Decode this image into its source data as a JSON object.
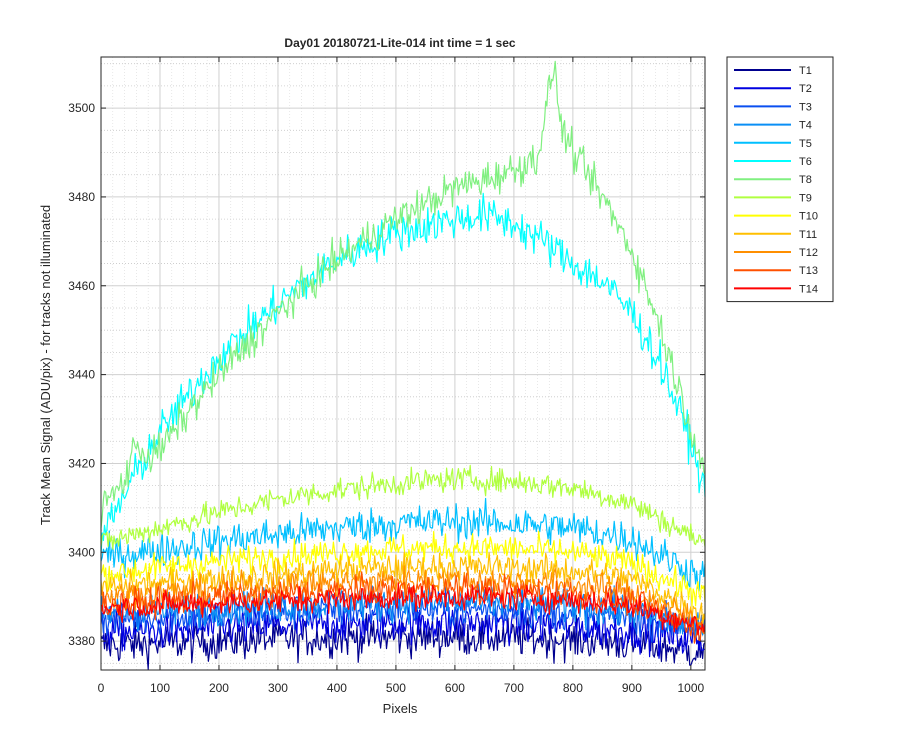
{
  "chart_data": {
    "type": "line",
    "title": "Day01 20180721-Lite-014 int time = 1 sec",
    "xlabel": "Pixels",
    "ylabel": "Track Mean Signal (ADU/pix) - for tracks not illuminated",
    "xlim": [
      0,
      1024
    ],
    "ylim": [
      3373.5,
      3511.5
    ],
    "xticks": [
      0,
      100,
      200,
      300,
      400,
      500,
      600,
      700,
      800,
      900,
      1000
    ],
    "yticks": [
      3380,
      3400,
      3420,
      3440,
      3460,
      3480,
      3500
    ],
    "xtick_labels": [
      "0",
      "100",
      "200",
      "300",
      "400",
      "500",
      "600",
      "700",
      "800",
      "900",
      "1000"
    ],
    "ytick_labels": [
      "3380",
      "3400",
      "3420",
      "3440",
      "3460",
      "3480",
      "3500"
    ],
    "grid": true,
    "minor_grid": true,
    "legend_position": "outside-top-right",
    "series": [
      {
        "name": "T1",
        "color": "#00008f",
        "noise": 2.2,
        "x": [
          0,
          100,
          200,
          300,
          400,
          500,
          600,
          700,
          800,
          900,
          1024
        ],
        "y": [
          3379,
          3379.5,
          3380,
          3380.5,
          3380.8,
          3381,
          3381,
          3380.8,
          3380.3,
          3379.5,
          3377.5
        ]
      },
      {
        "name": "T2",
        "color": "#0000e0",
        "noise": 2.2,
        "x": [
          0,
          100,
          200,
          300,
          400,
          500,
          600,
          700,
          800,
          900,
          1024
        ],
        "y": [
          3382,
          3382.5,
          3383,
          3383.5,
          3384,
          3384.2,
          3384.2,
          3384,
          3383.3,
          3382.5,
          3380
        ]
      },
      {
        "name": "T3",
        "color": "#0a4ff0",
        "noise": 2.0,
        "x": [
          0,
          100,
          200,
          300,
          400,
          500,
          600,
          700,
          800,
          900,
          1024
        ],
        "y": [
          3385,
          3385.5,
          3386,
          3386.5,
          3387,
          3387.2,
          3387.2,
          3387,
          3386.3,
          3385.5,
          3383
        ]
      },
      {
        "name": "T4",
        "color": "#0a8ff5",
        "noise": 2.0,
        "x": [
          0,
          100,
          200,
          300,
          400,
          500,
          600,
          700,
          800,
          900,
          1024
        ],
        "y": [
          3386,
          3387,
          3387.5,
          3388,
          3388.5,
          3388.7,
          3388.7,
          3388.5,
          3387.8,
          3386.5,
          3383
        ]
      },
      {
        "name": "T5",
        "color": "#00bfff",
        "noise": 2.0,
        "x": [
          0,
          100,
          200,
          300,
          400,
          500,
          600,
          700,
          800,
          900,
          1024
        ],
        "y": [
          3399,
          3400.5,
          3402.5,
          3404,
          3405.5,
          3406.5,
          3407,
          3406.5,
          3405.5,
          3403,
          3394
        ]
      },
      {
        "name": "T6",
        "color": "#00ffff",
        "noise": 2.2,
        "x": [
          0,
          20,
          60,
          100,
          200,
          300,
          400,
          500,
          600,
          650,
          700,
          750,
          800,
          850,
          900,
          950,
          1000,
          1024
        ],
        "y": [
          3403,
          3408,
          3418,
          3427,
          3444,
          3456,
          3466,
          3472,
          3475,
          3476,
          3474,
          3470,
          3465,
          3461,
          3454,
          3442,
          3425,
          3413
        ]
      },
      {
        "name": "T8",
        "color": "#80f080",
        "noise": 2.0,
        "x": [
          0,
          40,
          60,
          80,
          100,
          150,
          200,
          300,
          400,
          500,
          600,
          700,
          740,
          755,
          768,
          780,
          800,
          850,
          900,
          950,
          1000,
          1024
        ],
        "y": [
          3410,
          3416,
          3425,
          3421,
          3423,
          3432,
          3440,
          3454,
          3466,
          3475,
          3482,
          3486,
          3489,
          3500,
          3510,
          3496,
          3490,
          3480,
          3468,
          3450,
          3428,
          3418
        ]
      },
      {
        "name": "T9",
        "color": "#b0ff40",
        "noise": 1.4,
        "x": [
          0,
          100,
          200,
          300,
          400,
          500,
          600,
          700,
          800,
          900,
          1024
        ],
        "y": [
          3402,
          3405.5,
          3409,
          3412,
          3414,
          3415.5,
          3416.5,
          3416,
          3414.5,
          3411,
          3402
        ]
      },
      {
        "name": "T10",
        "color": "#ffff00",
        "noise": 1.6,
        "x": [
          0,
          100,
          200,
          300,
          400,
          500,
          600,
          700,
          800,
          900,
          1024
        ],
        "y": [
          3395,
          3396.5,
          3398,
          3399,
          3400,
          3400.8,
          3401,
          3400.8,
          3400,
          3397.5,
          3390
        ]
      },
      {
        "name": "T11",
        "color": "#ffbf00",
        "noise": 1.6,
        "x": [
          0,
          100,
          200,
          300,
          400,
          500,
          600,
          700,
          800,
          900,
          1024
        ],
        "y": [
          3392,
          3393,
          3394,
          3395,
          3396,
          3396.5,
          3396.7,
          3396.5,
          3395.8,
          3394,
          3386
        ]
      },
      {
        "name": "T12",
        "color": "#ff8f00",
        "noise": 1.6,
        "x": [
          0,
          100,
          200,
          300,
          400,
          500,
          600,
          700,
          800,
          900,
          1024
        ],
        "y": [
          3390,
          3391,
          3391.8,
          3392.5,
          3393.2,
          3393.6,
          3393.8,
          3393.5,
          3392.8,
          3391,
          3384
        ]
      },
      {
        "name": "T13",
        "color": "#ff5000",
        "noise": 1.6,
        "x": [
          0,
          100,
          200,
          300,
          400,
          500,
          600,
          700,
          800,
          900,
          1024
        ],
        "y": [
          3388,
          3389,
          3389.8,
          3390.5,
          3391.2,
          3391.6,
          3391.8,
          3391.5,
          3390.8,
          3389,
          3382
        ]
      },
      {
        "name": "T14",
        "color": "#ff0000",
        "noise": 1.4,
        "x": [
          0,
          100,
          200,
          300,
          400,
          500,
          600,
          700,
          800,
          900,
          1024
        ],
        "y": [
          3387.5,
          3388,
          3388.5,
          3389,
          3389.5,
          3389.8,
          3390,
          3389.8,
          3389.2,
          3388,
          3383
        ]
      }
    ]
  }
}
